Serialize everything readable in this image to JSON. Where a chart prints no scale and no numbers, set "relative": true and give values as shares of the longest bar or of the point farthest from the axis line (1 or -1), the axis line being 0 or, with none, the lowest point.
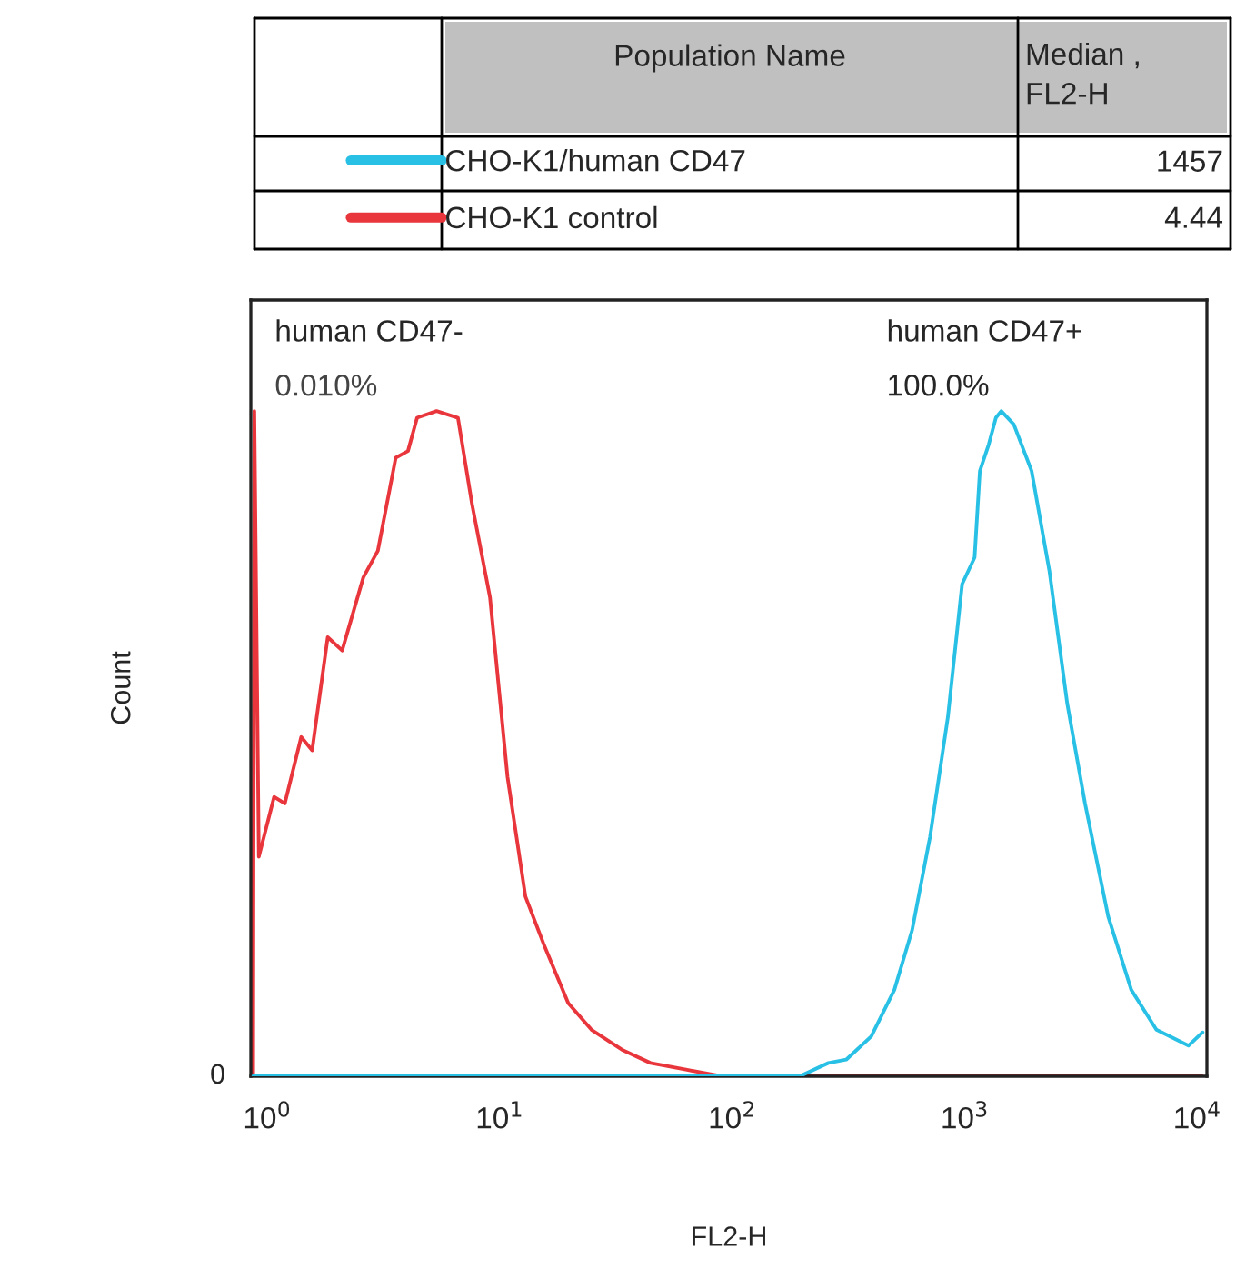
{
  "chart_data": {
    "type": "line",
    "xlabel": "FL2-H",
    "ylabel": "Count",
    "log": "x",
    "relative": true,
    "grid": false,
    "legend": "top",
    "xlim": [
      0.85,
      11000
    ],
    "xticks": [
      {
        "value": 1,
        "label": "10$^{0}$"
      },
      {
        "value": 10,
        "label": "10$^{1}$"
      },
      {
        "value": 100,
        "label": "10$^{2}$"
      },
      {
        "value": 1000,
        "label": "10$^{3}$"
      },
      {
        "value": 10000,
        "label": "10$^{4}$"
      }
    ],
    "annotations": [
      "Population Name",
      "Median ,\nFL2-H",
      "1457",
      "4.44",
      "human CD47-",
      "0.010%",
      "human CD47+",
      "100.0%",
      "0"
    ],
    "series": [
      {
        "name": "CHO-K1/human CD47",
        "color": "#29c0e6",
        "x": [
          0.87,
          195,
          259,
          309,
          396,
          498,
          594,
          709,
          846,
          974,
          1102,
          1161,
          1268,
          1361,
          1435,
          1625,
          1938,
          2311,
          2759,
          3290,
          4140,
          5200,
          6670,
          9160,
          10540
        ],
        "values": [
          0,
          0,
          0.02,
          0.025,
          0.06,
          0.13,
          0.22,
          0.36,
          0.54,
          0.74,
          0.78,
          0.91,
          0.95,
          0.99,
          1.0,
          0.98,
          0.91,
          0.76,
          0.56,
          0.41,
          0.24,
          0.13,
          0.07,
          0.046,
          0.066
        ]
      },
      {
        "name": "CHO-K1 control",
        "color": "#e8363c",
        "x": [
          0.87,
          0.88,
          0.92,
          1.07,
          1.19,
          1.4,
          1.56,
          1.82,
          2.1,
          2.59,
          2.99,
          3.57,
          4.03,
          4.41,
          5.35,
          6.61,
          7.6,
          9.08,
          10.8,
          12.9,
          15.4,
          19.7,
          24.8,
          33.5,
          44.5,
          63.2,
          90,
          10500
        ],
        "values": [
          0,
          1.0,
          0.33,
          0.42,
          0.41,
          0.51,
          0.49,
          0.66,
          0.64,
          0.75,
          0.79,
          0.93,
          0.94,
          0.99,
          1.0,
          0.99,
          0.86,
          0.72,
          0.45,
          0.27,
          0.2,
          0.11,
          0.07,
          0.04,
          0.02,
          0.01,
          0,
          0
        ]
      }
    ]
  }
}
